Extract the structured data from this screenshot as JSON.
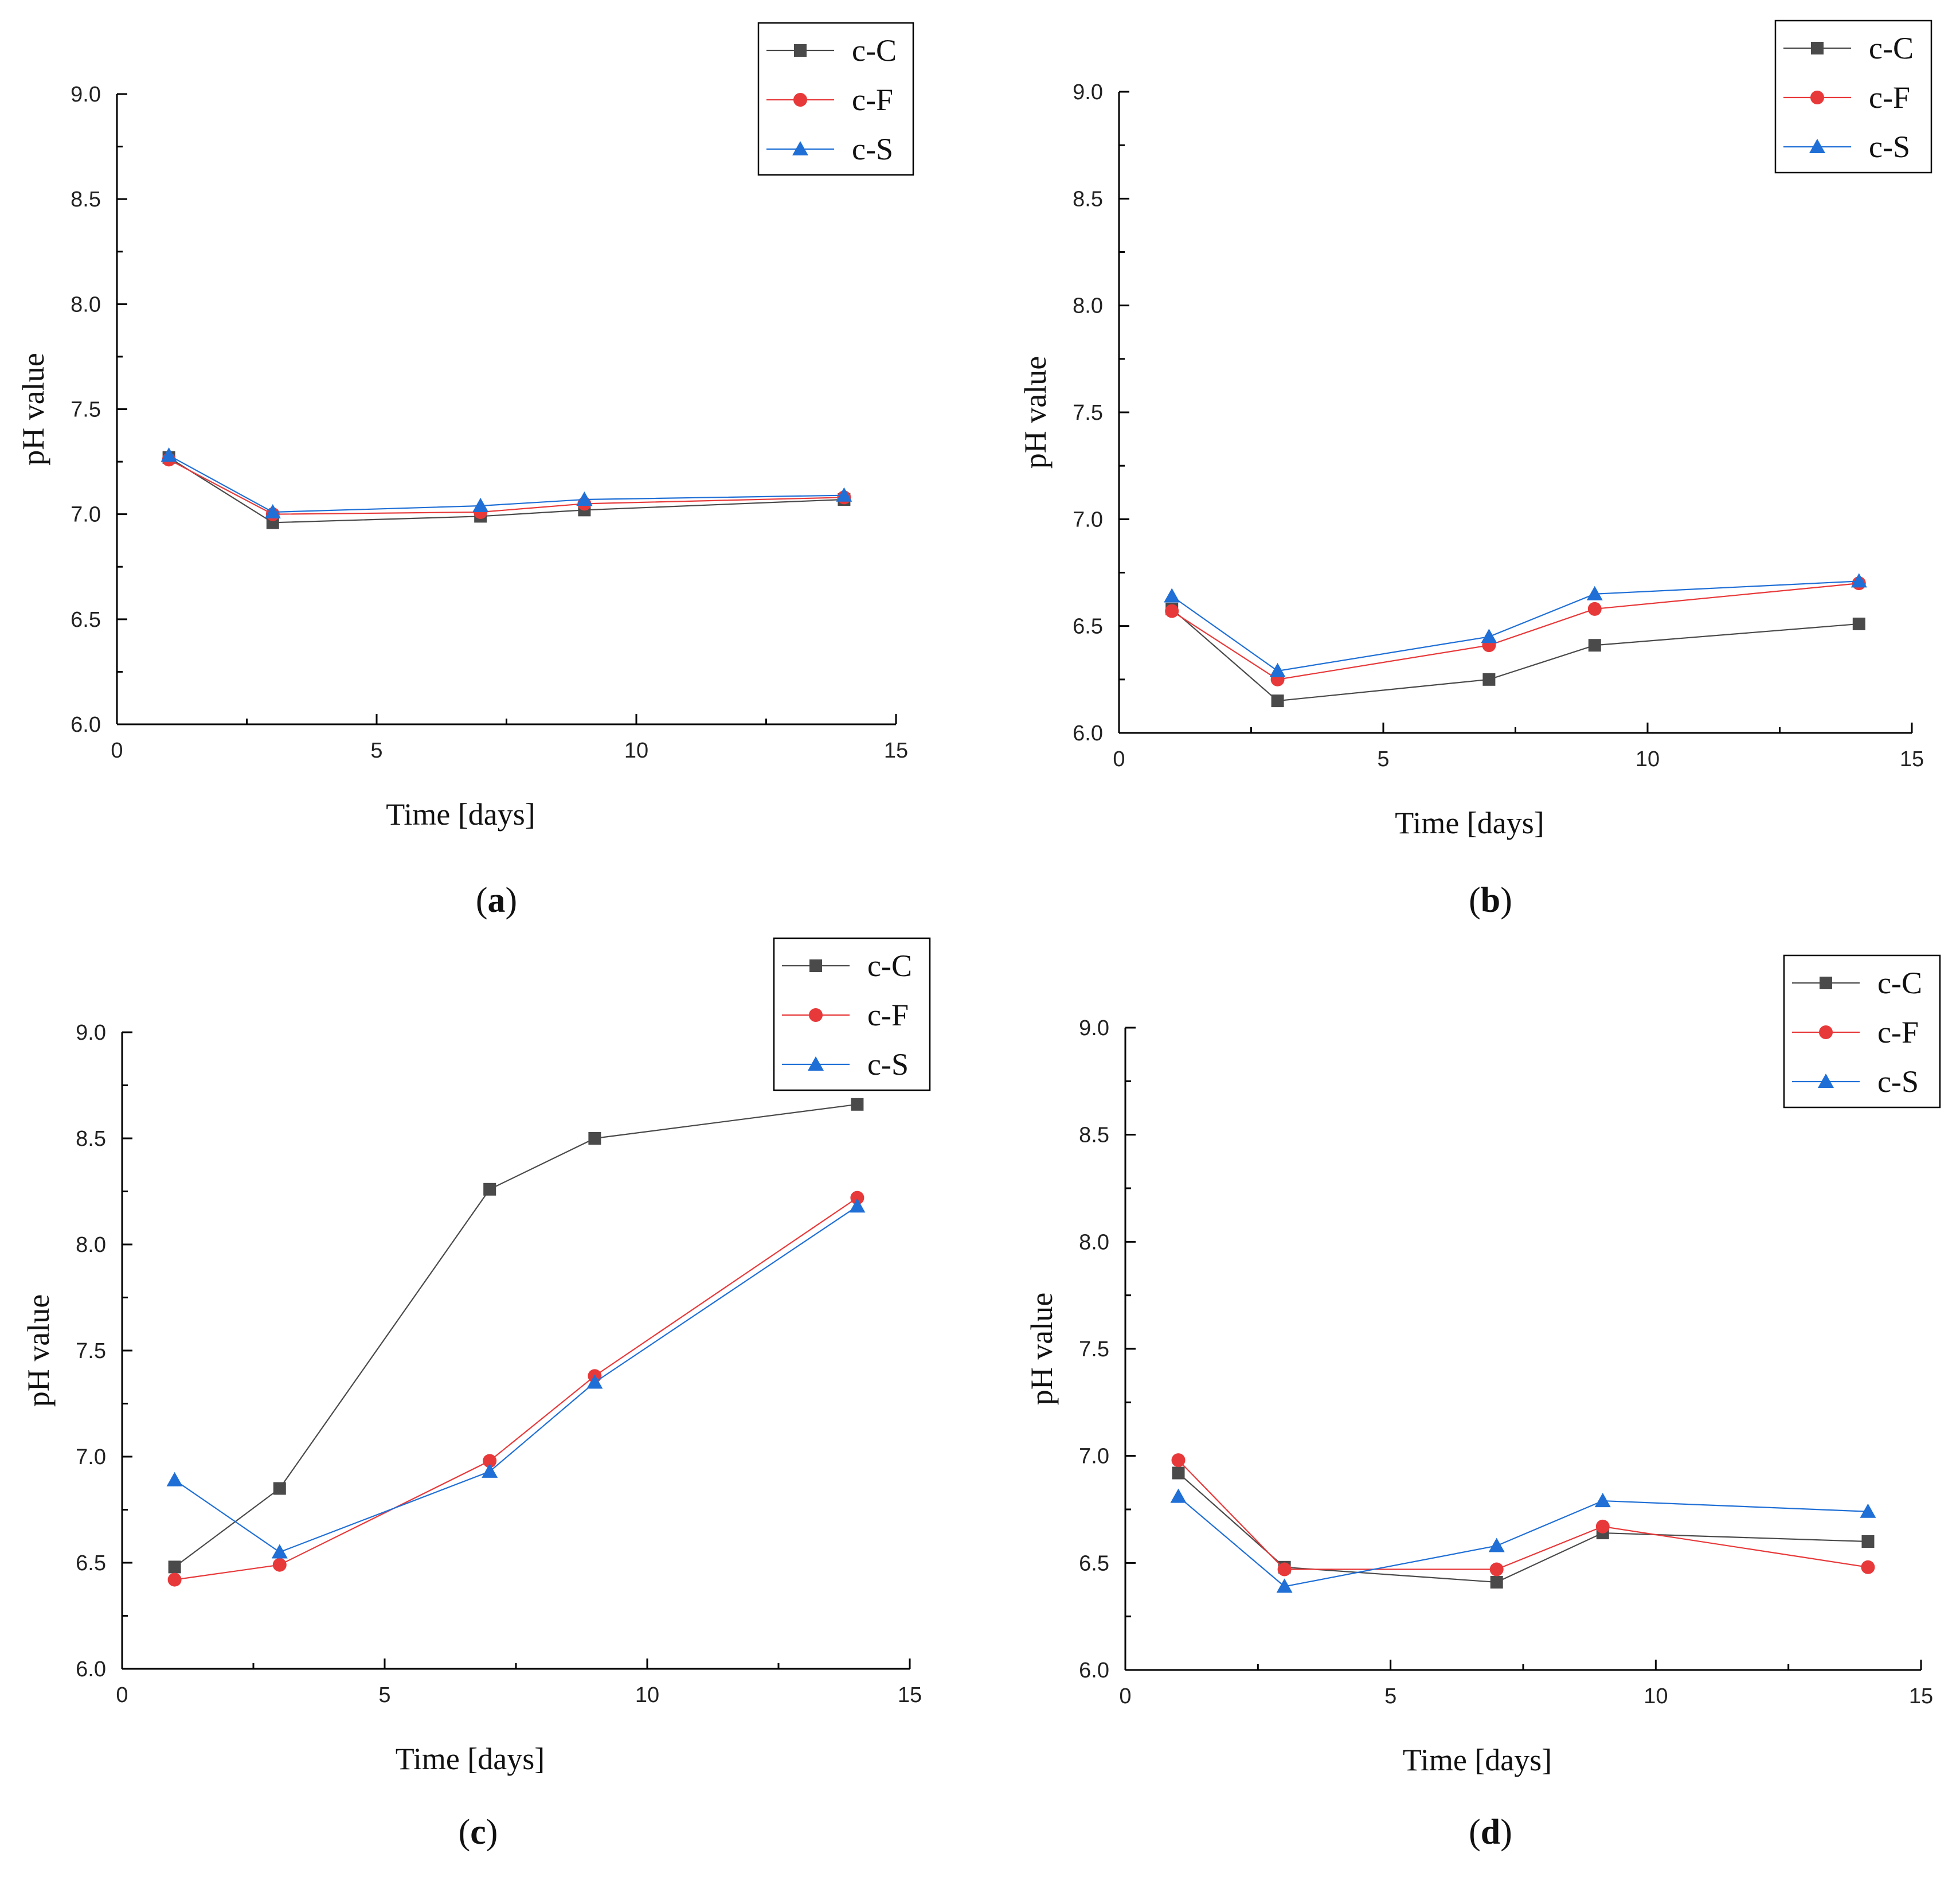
{
  "figure": {
    "series_styles": [
      {
        "name": "c-C",
        "color": "#4a4a4a",
        "marker": "square"
      },
      {
        "name": "c-F",
        "color": "#e8393a",
        "marker": "circle"
      },
      {
        "name": "c-S",
        "color": "#1f6fd6",
        "marker": "triangle"
      }
    ]
  },
  "chart_data": [
    {
      "panel": "a",
      "type": "line",
      "caption_open": "(",
      "caption_letter": "a",
      "caption_close": ")",
      "xlabel": "Time [days]",
      "ylabel": "pH value",
      "xlim": [
        0,
        15
      ],
      "ylim": [
        6.0,
        9.0
      ],
      "xticks": [
        "0",
        "5",
        "10",
        "15"
      ],
      "yticks": [
        "6.0",
        "6.5",
        "7.0",
        "7.5",
        "8.0",
        "8.5",
        "9.0"
      ],
      "legend_position": "top-right",
      "x": [
        1,
        3,
        7,
        9,
        14
      ],
      "series": [
        {
          "name": "c-C",
          "values": [
            7.27,
            6.96,
            6.99,
            7.02,
            7.07
          ]
        },
        {
          "name": "c-F",
          "values": [
            7.26,
            7.0,
            7.01,
            7.05,
            7.08
          ]
        },
        {
          "name": "c-S",
          "values": [
            7.28,
            7.01,
            7.04,
            7.07,
            7.09
          ]
        }
      ]
    },
    {
      "panel": "b",
      "type": "line",
      "caption_open": "(",
      "caption_letter": "b",
      "caption_close": ")",
      "xlabel": "Time [days]",
      "ylabel": "pH value",
      "xlim": [
        0,
        15
      ],
      "ylim": [
        6.0,
        9.0
      ],
      "xticks": [
        "0",
        "5",
        "10",
        "15"
      ],
      "yticks": [
        "6.0",
        "6.5",
        "7.0",
        "7.5",
        "8.0",
        "8.5",
        "9.0"
      ],
      "legend_position": "top-right",
      "x": [
        1,
        3,
        7,
        9,
        14
      ],
      "series": [
        {
          "name": "c-C",
          "values": [
            6.58,
            6.15,
            6.25,
            6.41,
            6.51
          ]
        },
        {
          "name": "c-F",
          "values": [
            6.57,
            6.25,
            6.41,
            6.58,
            6.7
          ]
        },
        {
          "name": "c-S",
          "values": [
            6.64,
            6.29,
            6.45,
            6.65,
            6.71
          ]
        }
      ]
    },
    {
      "panel": "c",
      "type": "line",
      "caption_open": "(",
      "caption_letter": "c",
      "caption_close": ")",
      "xlabel": "Time [days]",
      "ylabel": "pH value",
      "xlim": [
        0,
        15
      ],
      "ylim": [
        6.0,
        9.0
      ],
      "xticks": [
        "0",
        "5",
        "10",
        "15"
      ],
      "yticks": [
        "6.0",
        "6.5",
        "7.0",
        "7.5",
        "8.0",
        "8.5",
        "9.0"
      ],
      "legend_position": "top-right",
      "x": [
        1,
        3,
        7,
        9,
        14
      ],
      "series": [
        {
          "name": "c-C",
          "values": [
            6.48,
            6.85,
            8.26,
            8.5,
            8.66
          ]
        },
        {
          "name": "c-F",
          "values": [
            6.42,
            6.49,
            6.98,
            7.38,
            8.22
          ]
        },
        {
          "name": "c-S",
          "values": [
            6.89,
            6.55,
            6.93,
            7.35,
            8.18
          ]
        }
      ]
    },
    {
      "panel": "d",
      "type": "line",
      "caption_open": "(",
      "caption_letter": "d",
      "caption_close": ")",
      "xlabel": "Time [days]",
      "ylabel": "pH value",
      "xlim": [
        0,
        15
      ],
      "ylim": [
        6.0,
        9.0
      ],
      "xticks": [
        "0",
        "5",
        "10",
        "15"
      ],
      "yticks": [
        "6.0",
        "6.5",
        "7.0",
        "7.5",
        "8.0",
        "8.5",
        "9.0"
      ],
      "legend_position": "top-right",
      "x": [
        1,
        3,
        7,
        9,
        14
      ],
      "series": [
        {
          "name": "c-C",
          "values": [
            6.92,
            6.48,
            6.41,
            6.64,
            6.6
          ]
        },
        {
          "name": "c-F",
          "values": [
            6.98,
            6.47,
            6.47,
            6.67,
            6.48
          ]
        },
        {
          "name": "c-S",
          "values": [
            6.81,
            6.39,
            6.58,
            6.79,
            6.74
          ]
        }
      ]
    }
  ]
}
